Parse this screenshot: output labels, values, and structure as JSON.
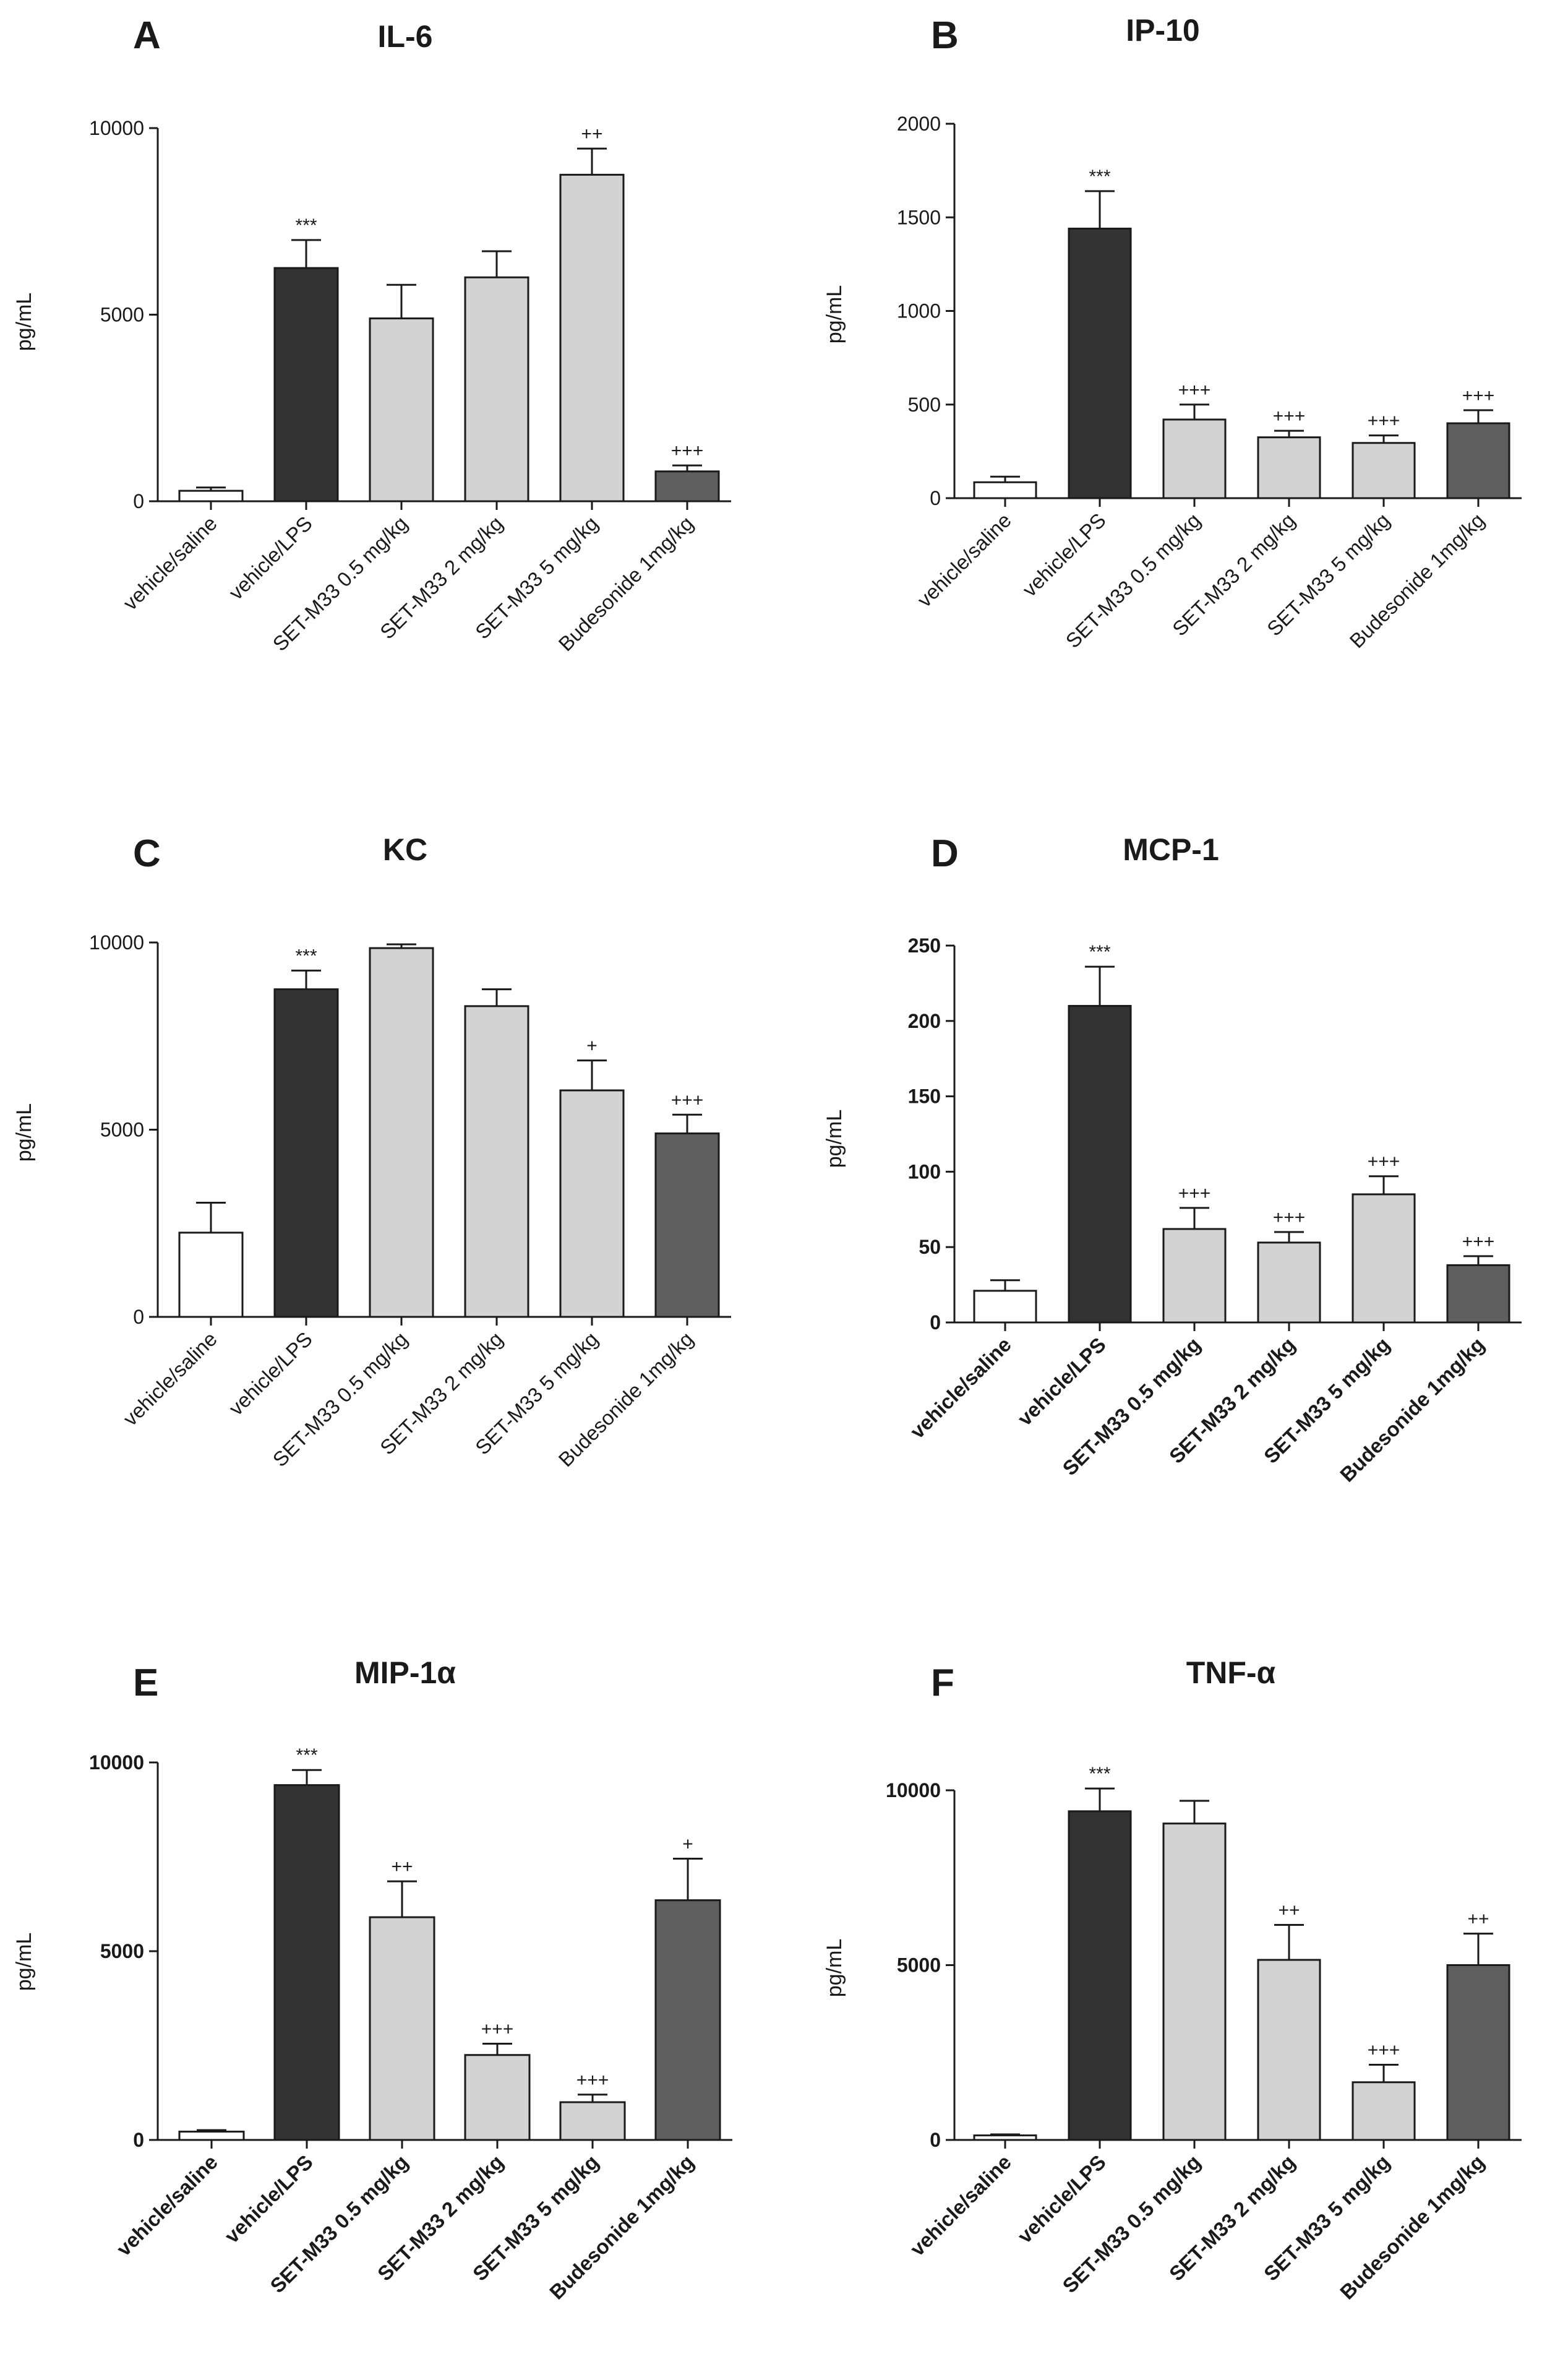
{
  "chart_data": [
    {
      "type": "bar",
      "panel": "A",
      "title": "IL-6",
      "ylabel": "pg/mL",
      "ylim": [
        0,
        10000
      ],
      "yticks": [
        "0",
        "5000",
        "10000"
      ],
      "categories": [
        "vehicle/saline",
        "vehicle/LPS",
        "SET-M33 0.5 mg/kg",
        "SET-M33 2 mg/kg",
        "SET-M33 5 mg/kg",
        "Budesonide 1mg/kg"
      ],
      "values": [
        280,
        6250,
        4900,
        6000,
        8750,
        800
      ],
      "errors": [
        90,
        750,
        900,
        700,
        700,
        160
      ],
      "significance": [
        "",
        "***",
        "",
        "",
        "++",
        "+++"
      ],
      "fills": [
        "#ffffff",
        "#333333",
        "#d3d3d3",
        "#d3d3d3",
        "#d3d3d3",
        "#5f5f5f"
      ]
    },
    {
      "type": "bar",
      "panel": "B",
      "title": "IP-10",
      "ylabel": "pg/mL",
      "ylim": [
        0,
        2000
      ],
      "yticks": [
        "0",
        "500",
        "1000",
        "1500",
        "2000"
      ],
      "categories": [
        "vehicle/saline",
        "vehicle/LPS",
        "SET-M33 0.5 mg/kg",
        "SET-M33 2 mg/kg",
        "SET-M33 5 mg/kg",
        "Budesonide 1mg/kg"
      ],
      "values": [
        85,
        1440,
        420,
        325,
        295,
        400
      ],
      "errors": [
        30,
        200,
        80,
        35,
        40,
        70
      ],
      "significance": [
        "",
        "***",
        "+++",
        "+++",
        "+++",
        "+++"
      ],
      "fills": [
        "#ffffff",
        "#333333",
        "#d3d3d3",
        "#d3d3d3",
        "#d3d3d3",
        "#5f5f5f"
      ]
    },
    {
      "type": "bar",
      "panel": "C",
      "title": "KC",
      "ylabel": "pg/mL",
      "ylim": [
        0,
        10000
      ],
      "yticks": [
        "0",
        "5000",
        "10000"
      ],
      "categories": [
        "vehicle/saline",
        "vehicle/LPS",
        "SET-M33 0.5 mg/kg",
        "SET-M33 2 mg/kg",
        "SET-M33 5 mg/kg",
        "Budesonide 1mg/kg"
      ],
      "values": [
        2250,
        8750,
        9850,
        8300,
        6050,
        4900
      ],
      "errors": [
        800,
        500,
        100,
        450,
        800,
        500
      ],
      "significance": [
        "",
        "***",
        "",
        "",
        "+",
        "+++"
      ],
      "fills": [
        "#ffffff",
        "#333333",
        "#d3d3d3",
        "#d3d3d3",
        "#d3d3d3",
        "#5f5f5f"
      ]
    },
    {
      "type": "bar",
      "panel": "D",
      "title": "MCP-1",
      "ylabel": "pg/mL",
      "ylim": [
        0,
        250
      ],
      "yticks": [
        "0",
        "50",
        "100",
        "150",
        "200",
        "250"
      ],
      "categories": [
        "vehicle/saline",
        "vehicle/LPS",
        "SET-M33 0.5 mg/kg",
        "SET-M33 2 mg/kg",
        "SET-M33 5 mg/kg",
        "Budesonide 1mg/kg"
      ],
      "values": [
        21,
        210,
        62,
        53,
        85,
        38
      ],
      "errors": [
        7,
        26,
        14,
        7,
        12,
        6
      ],
      "significance": [
        "",
        "***",
        "+++",
        "+++",
        "+++",
        "+++"
      ],
      "fills": [
        "#ffffff",
        "#333333",
        "#d3d3d3",
        "#d3d3d3",
        "#d3d3d3",
        "#5f5f5f"
      ]
    },
    {
      "type": "bar",
      "panel": "E",
      "title": "MIP-1α",
      "ylabel": "pg/mL",
      "ylim": [
        0,
        10000
      ],
      "yticks": [
        "0",
        "5000",
        "10000"
      ],
      "categories": [
        "vehicle/saline",
        "vehicle/LPS",
        "SET-M33 0.5 mg/kg",
        "SET-M33 2 mg/kg",
        "SET-M33 5 mg/kg",
        "Budesonide 1mg/kg"
      ],
      "values": [
        220,
        9400,
        5900,
        2250,
        1000,
        6350
      ],
      "errors": [
        40,
        400,
        950,
        300,
        200,
        1100
      ],
      "significance": [
        "",
        "***",
        "++",
        "+++",
        "+++",
        "+"
      ],
      "fills": [
        "#ffffff",
        "#333333",
        "#d3d3d3",
        "#d3d3d3",
        "#d3d3d3",
        "#5f5f5f"
      ]
    },
    {
      "type": "bar",
      "panel": "F",
      "title": "TNF-α",
      "ylabel": "pg/mL",
      "ylim": [
        0,
        10000
      ],
      "yticks": [
        "0",
        "5000",
        "10000"
      ],
      "categories": [
        "vehicle/saline",
        "vehicle/LPS",
        "SET-M33 0.5 mg/kg",
        "SET-M33 2 mg/kg",
        "SET-M33 5 mg/kg",
        "Budesonide 1mg/kg"
      ],
      "values": [
        130,
        9400,
        9050,
        5150,
        1650,
        5000
      ],
      "errors": [
        30,
        650,
        650,
        1000,
        500,
        900
      ],
      "significance": [
        "",
        "***",
        "",
        "++",
        "+++",
        "++"
      ],
      "fills": [
        "#ffffff",
        "#333333",
        "#d3d3d3",
        "#d3d3d3",
        "#d3d3d3",
        "#5f5f5f"
      ]
    }
  ]
}
